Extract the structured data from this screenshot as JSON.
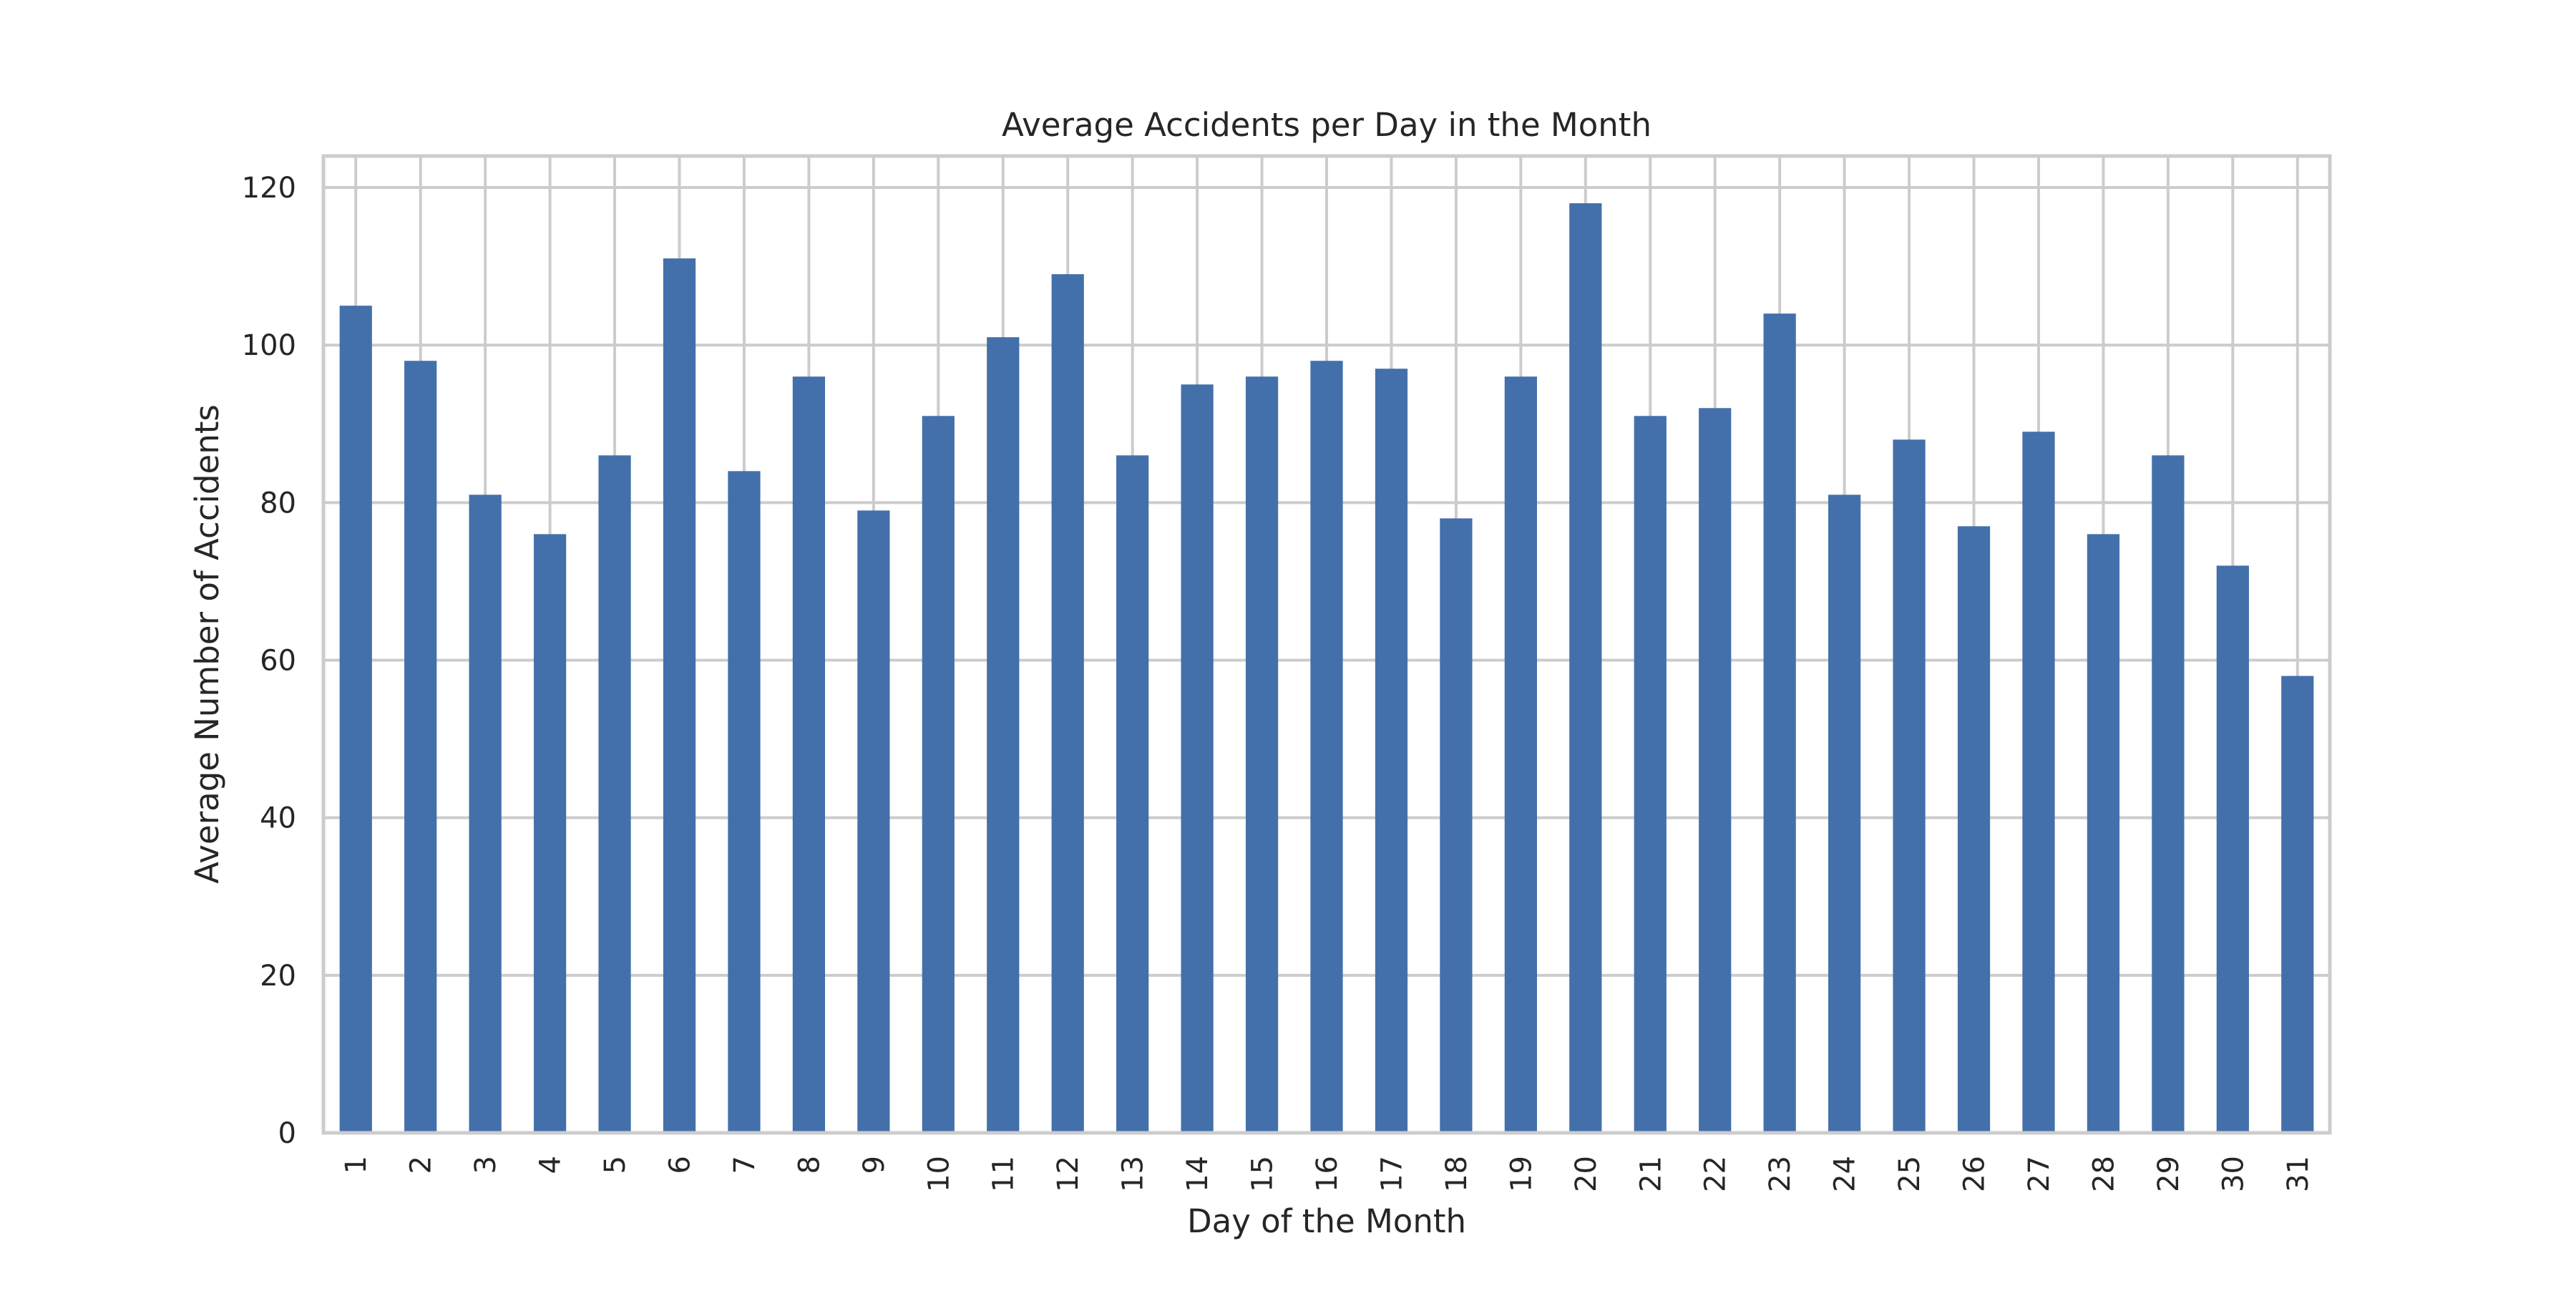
{
  "chart_data": {
    "type": "bar",
    "title": "Average Accidents per Day in the Month",
    "xlabel": "Day of the Month",
    "ylabel": "Average Number of Accidents",
    "categories": [
      "1",
      "2",
      "3",
      "4",
      "5",
      "6",
      "7",
      "8",
      "9",
      "10",
      "11",
      "12",
      "13",
      "14",
      "15",
      "16",
      "17",
      "18",
      "19",
      "20",
      "21",
      "22",
      "23",
      "24",
      "25",
      "26",
      "27",
      "28",
      "29",
      "30",
      "31"
    ],
    "values": [
      105,
      98,
      81,
      76,
      86,
      111,
      84,
      96,
      79,
      91,
      101,
      109,
      86,
      95,
      96,
      98,
      97,
      78,
      96,
      118,
      91,
      92,
      104,
      81,
      88,
      77,
      89,
      76,
      86,
      72,
      58
    ],
    "ylim": [
      0,
      124
    ],
    "yticks": [
      0,
      20,
      40,
      60,
      80,
      100,
      120
    ],
    "grid": true,
    "x_tick_rotation": "vertical",
    "bar_color": "#4370aa",
    "grid_color": "#cccccc",
    "text_color": "#262626"
  }
}
